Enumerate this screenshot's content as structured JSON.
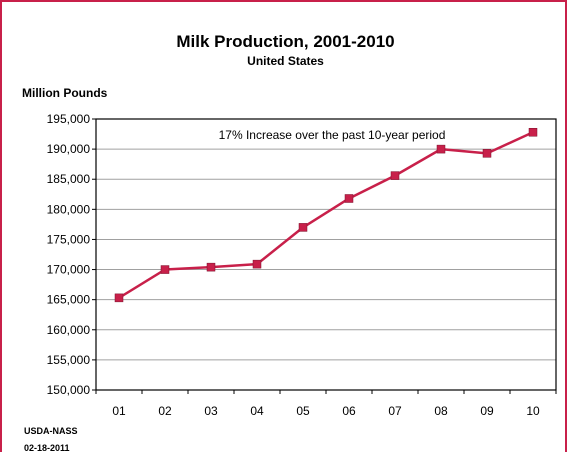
{
  "chart_data": {
    "type": "line",
    "title": "Milk Production, 2001-2010",
    "subtitle": "United States",
    "ylabel": "Million Pounds",
    "xlabel": "",
    "categories": [
      "01",
      "02",
      "03",
      "04",
      "05",
      "06",
      "07",
      "08",
      "09",
      "10"
    ],
    "series": [
      {
        "values": [
          165300,
          170000,
          170400,
          170900,
          177000,
          181800,
          185600,
          190000,
          189300,
          192800
        ]
      }
    ],
    "ylim": [
      150000,
      195000
    ],
    "yticks": [
      150000,
      155000,
      160000,
      165000,
      170000,
      175000,
      180000,
      185000,
      190000,
      195000
    ],
    "ytick_labels": [
      "150,000",
      "155,000",
      "160,000",
      "165,000",
      "170,000",
      "175,000",
      "180,000",
      "185,000",
      "190,000",
      "195,000"
    ],
    "annotation": "17% Increase over the past 10-year period",
    "grid": true,
    "legend": "none",
    "line_color": "#c8204a",
    "frame_color": "#c8204a"
  },
  "footer": {
    "source": "USDA-NASS",
    "date": "02-18-2011"
  }
}
